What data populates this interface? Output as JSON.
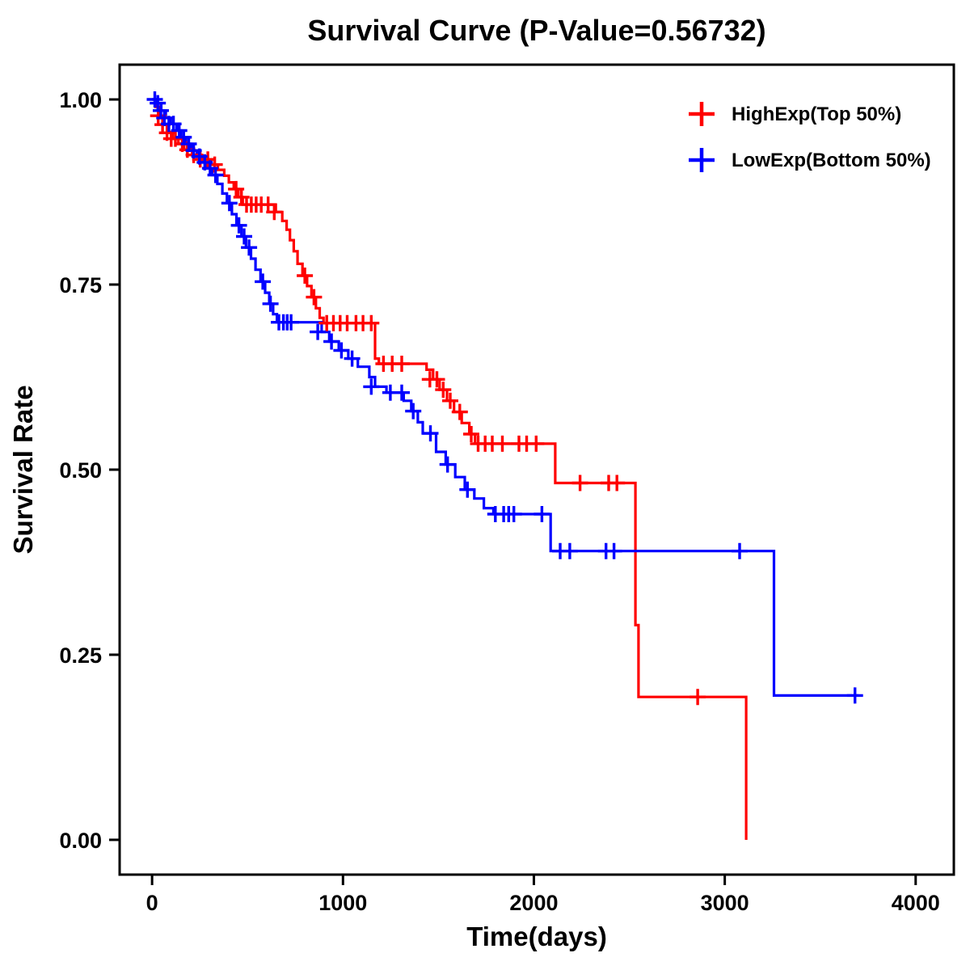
{
  "chart_data": {
    "type": "line",
    "subtype": "kaplan-meier-survival-step",
    "title": "Survival Curve (P-Value=0.56732)",
    "p_value_text": "P-Value=0.56732",
    "xlabel": "Time(days)",
    "ylabel": "Survival Rate",
    "xlim": [
      -170,
      4200
    ],
    "ylim": [
      -0.047,
      1.047
    ],
    "grid": false,
    "legend_position": "top-right-inside",
    "axis_color": "#000000",
    "xticks": {
      "values": [
        0,
        1000,
        2000,
        3000,
        4000
      ],
      "labels": [
        "0",
        "1000",
        "2000",
        "3000",
        "4000"
      ]
    },
    "yticks": {
      "values": [
        0,
        0.25,
        0.5,
        0.75,
        1
      ],
      "labels": [
        "0.00",
        "0.25",
        "0.50",
        "0.75",
        "1.00"
      ]
    },
    "series": [
      {
        "name": "HighExp(Top 50%)",
        "color": "#FF0000",
        "steps": [
          [
            0,
            1.0
          ],
          [
            18,
            0.99
          ],
          [
            38,
            0.978
          ],
          [
            58,
            0.966
          ],
          [
            82,
            0.955
          ],
          [
            108,
            0.947
          ],
          [
            138,
            0.94
          ],
          [
            168,
            0.932
          ],
          [
            210,
            0.925
          ],
          [
            262,
            0.919
          ],
          [
            310,
            0.912
          ],
          [
            345,
            0.905
          ],
          [
            378,
            0.897
          ],
          [
            402,
            0.888
          ],
          [
            428,
            0.879
          ],
          [
            452,
            0.868
          ],
          [
            475,
            0.858
          ],
          [
            648,
            0.848
          ],
          [
            682,
            0.836
          ],
          [
            705,
            0.824
          ],
          [
            722,
            0.81
          ],
          [
            742,
            0.795
          ],
          [
            762,
            0.778
          ],
          [
            788,
            0.762
          ],
          [
            812,
            0.748
          ],
          [
            835,
            0.733
          ],
          [
            858,
            0.718
          ],
          [
            878,
            0.705
          ],
          [
            898,
            0.698
          ],
          [
            1158,
            0.698
          ],
          [
            1168,
            0.65
          ],
          [
            1188,
            0.643
          ],
          [
            1438,
            0.635
          ],
          [
            1472,
            0.622
          ],
          [
            1506,
            0.608
          ],
          [
            1545,
            0.593
          ],
          [
            1582,
            0.578
          ],
          [
            1622,
            0.563
          ],
          [
            1662,
            0.548
          ],
          [
            1692,
            0.535
          ],
          [
            2092,
            0.535
          ],
          [
            2112,
            0.482
          ],
          [
            2520,
            0.482
          ],
          [
            2532,
            0.29
          ],
          [
            2548,
            0.193
          ],
          [
            3098,
            0.193
          ],
          [
            3112,
            0.0
          ]
        ],
        "censor_marks": [
          [
            32,
            0.978
          ],
          [
            55,
            0.966
          ],
          [
            78,
            0.955
          ],
          [
            100,
            0.947
          ],
          [
            122,
            0.947
          ],
          [
            158,
            0.94
          ],
          [
            185,
            0.932
          ],
          [
            218,
            0.925
          ],
          [
            252,
            0.919
          ],
          [
            292,
            0.919
          ],
          [
            328,
            0.912
          ],
          [
            440,
            0.879
          ],
          [
            468,
            0.868
          ],
          [
            495,
            0.858
          ],
          [
            520,
            0.858
          ],
          [
            545,
            0.858
          ],
          [
            572,
            0.858
          ],
          [
            608,
            0.858
          ],
          [
            640,
            0.848
          ],
          [
            800,
            0.762
          ],
          [
            848,
            0.733
          ],
          [
            915,
            0.698
          ],
          [
            950,
            0.698
          ],
          [
            985,
            0.698
          ],
          [
            1022,
            0.698
          ],
          [
            1068,
            0.698
          ],
          [
            1105,
            0.698
          ],
          [
            1148,
            0.698
          ],
          [
            1212,
            0.643
          ],
          [
            1258,
            0.643
          ],
          [
            1308,
            0.643
          ],
          [
            1455,
            0.622
          ],
          [
            1492,
            0.622
          ],
          [
            1525,
            0.608
          ],
          [
            1562,
            0.593
          ],
          [
            1612,
            0.578
          ],
          [
            1672,
            0.548
          ],
          [
            1708,
            0.535
          ],
          [
            1745,
            0.535
          ],
          [
            1782,
            0.535
          ],
          [
            1835,
            0.535
          ],
          [
            1922,
            0.535
          ],
          [
            1962,
            0.535
          ],
          [
            2012,
            0.535
          ],
          [
            2242,
            0.482
          ],
          [
            2392,
            0.482
          ],
          [
            2435,
            0.482
          ],
          [
            2858,
            0.193
          ]
        ]
      },
      {
        "name": "LowExp(Bottom 50%)",
        "color": "#0000FF",
        "steps": [
          [
            0,
            1.0
          ],
          [
            22,
            0.995
          ],
          [
            48,
            0.985
          ],
          [
            72,
            0.975
          ],
          [
            98,
            0.967
          ],
          [
            128,
            0.958
          ],
          [
            152,
            0.949
          ],
          [
            178,
            0.94
          ],
          [
            205,
            0.931
          ],
          [
            235,
            0.923
          ],
          [
            262,
            0.915
          ],
          [
            288,
            0.907
          ],
          [
            315,
            0.898
          ],
          [
            342,
            0.886
          ],
          [
            368,
            0.873
          ],
          [
            392,
            0.86
          ],
          [
            418,
            0.845
          ],
          [
            442,
            0.83
          ],
          [
            468,
            0.815
          ],
          [
            492,
            0.8
          ],
          [
            518,
            0.785
          ],
          [
            542,
            0.77
          ],
          [
            568,
            0.754
          ],
          [
            592,
            0.739
          ],
          [
            614,
            0.724
          ],
          [
            634,
            0.71
          ],
          [
            654,
            0.699
          ],
          [
            858,
            0.699
          ],
          [
            888,
            0.686
          ],
          [
            928,
            0.673
          ],
          [
            978,
            0.661
          ],
          [
            1028,
            0.65
          ],
          [
            1078,
            0.639
          ],
          [
            1138,
            0.625
          ],
          [
            1168,
            0.612
          ],
          [
            1228,
            0.604
          ],
          [
            1318,
            0.593
          ],
          [
            1358,
            0.579
          ],
          [
            1392,
            0.564
          ],
          [
            1418,
            0.549
          ],
          [
            1488,
            0.524
          ],
          [
            1538,
            0.507
          ],
          [
            1588,
            0.49
          ],
          [
            1638,
            0.473
          ],
          [
            1688,
            0.461
          ],
          [
            1738,
            0.448
          ],
          [
            1788,
            0.44
          ],
          [
            2058,
            0.44
          ],
          [
            2088,
            0.39
          ],
          [
            3242,
            0.39
          ],
          [
            3258,
            0.195
          ],
          [
            3700,
            0.195
          ]
        ],
        "censor_marks": [
          [
            14,
            1.0
          ],
          [
            30,
            0.995
          ],
          [
            46,
            0.985
          ],
          [
            64,
            0.975
          ],
          [
            88,
            0.967
          ],
          [
            112,
            0.967
          ],
          [
            142,
            0.958
          ],
          [
            166,
            0.949
          ],
          [
            192,
            0.94
          ],
          [
            218,
            0.931
          ],
          [
            248,
            0.923
          ],
          [
            276,
            0.915
          ],
          [
            304,
            0.907
          ],
          [
            332,
            0.898
          ],
          [
            405,
            0.86
          ],
          [
            455,
            0.83
          ],
          [
            482,
            0.815
          ],
          [
            508,
            0.8
          ],
          [
            580,
            0.754
          ],
          [
            620,
            0.724
          ],
          [
            664,
            0.699
          ],
          [
            688,
            0.699
          ],
          [
            708,
            0.699
          ],
          [
            728,
            0.699
          ],
          [
            868,
            0.686
          ],
          [
            940,
            0.673
          ],
          [
            992,
            0.661
          ],
          [
            1048,
            0.65
          ],
          [
            1148,
            0.612
          ],
          [
            1248,
            0.604
          ],
          [
            1308,
            0.604
          ],
          [
            1368,
            0.579
          ],
          [
            1458,
            0.549
          ],
          [
            1548,
            0.507
          ],
          [
            1652,
            0.473
          ],
          [
            1798,
            0.44
          ],
          [
            1842,
            0.44
          ],
          [
            1868,
            0.44
          ],
          [
            1895,
            0.44
          ],
          [
            2042,
            0.44
          ],
          [
            2138,
            0.39
          ],
          [
            2188,
            0.39
          ],
          [
            2378,
            0.39
          ],
          [
            2420,
            0.39
          ],
          [
            3078,
            0.39
          ],
          [
            3682,
            0.195
          ]
        ]
      }
    ]
  }
}
